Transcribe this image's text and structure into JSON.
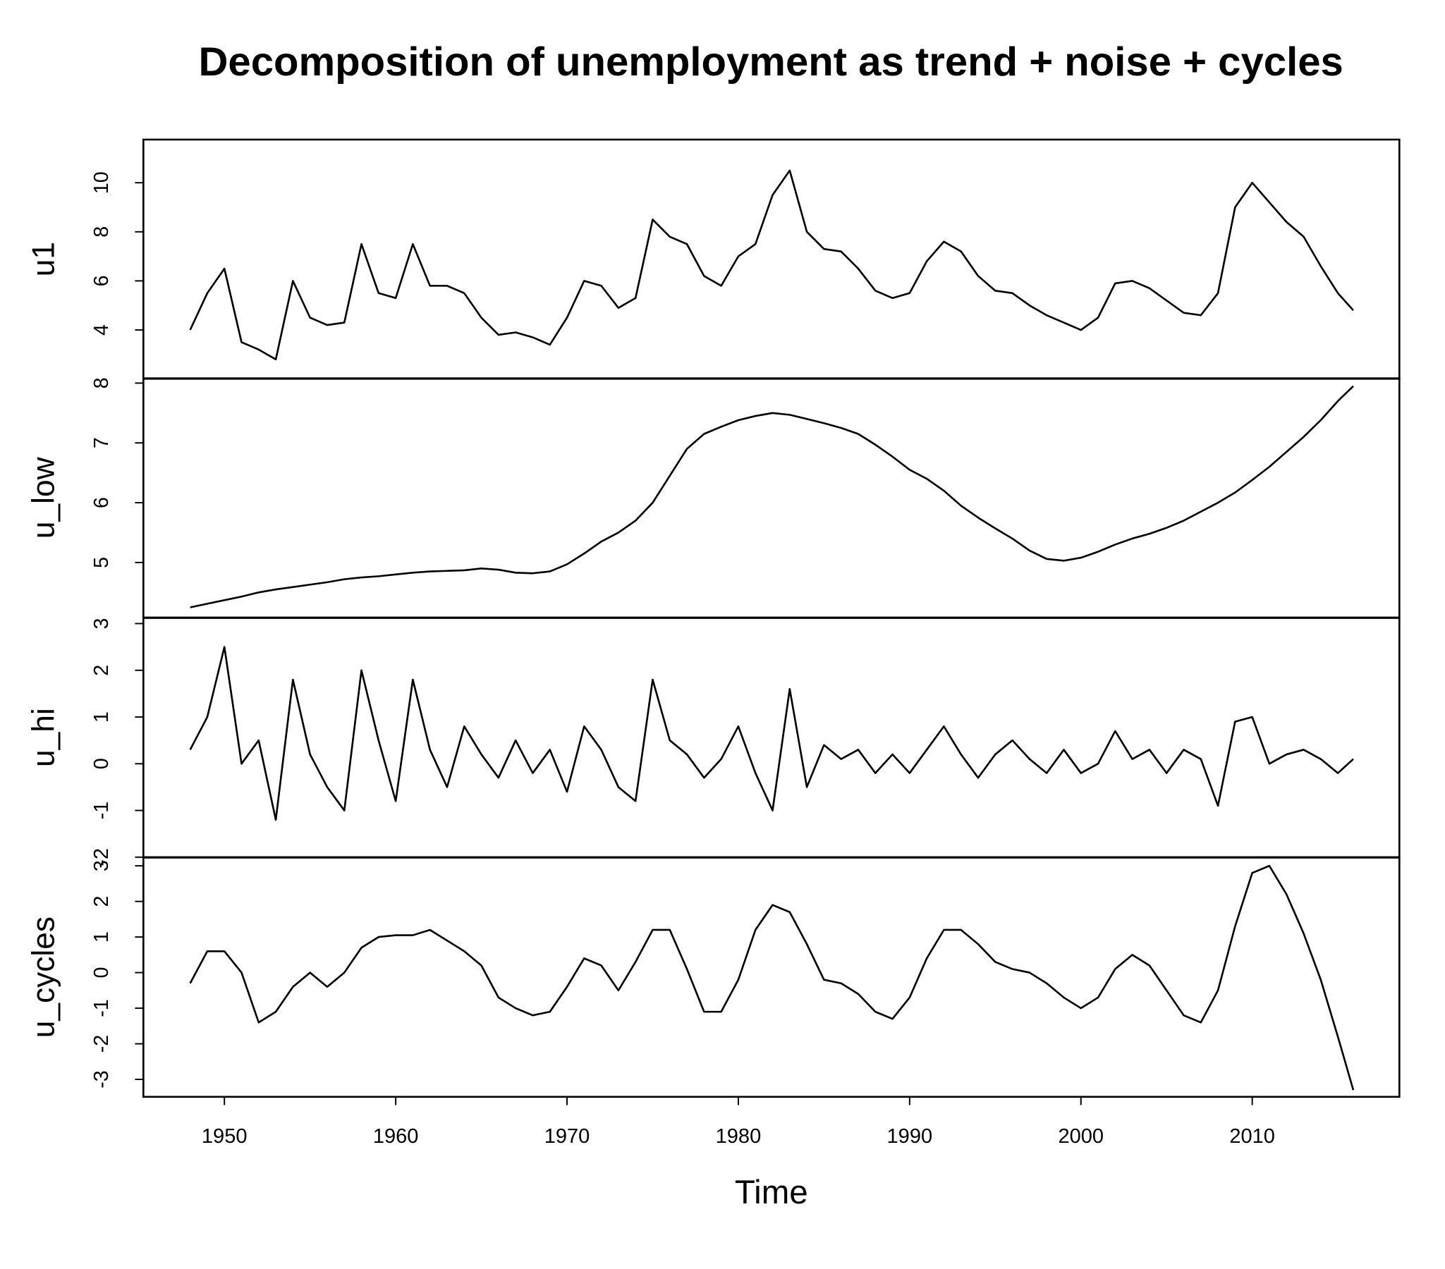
{
  "chart_data": [
    {
      "type": "line",
      "title": "Decomposition of unemployment as trend + noise + cycles",
      "ylabel": "u1",
      "color": "#000000",
      "x": [
        1948,
        1949,
        1950,
        1951,
        1952,
        1953,
        1954,
        1955,
        1956,
        1957,
        1958,
        1959,
        1960,
        1961,
        1962,
        1963,
        1964,
        1965,
        1966,
        1967,
        1968,
        1969,
        1970,
        1971,
        1972,
        1973,
        1974,
        1975,
        1976,
        1977,
        1978,
        1979,
        1980,
        1981,
        1982,
        1983,
        1984,
        1985,
        1986,
        1987,
        1988,
        1989,
        1990,
        1991,
        1992,
        1993,
        1994,
        1995,
        1996,
        1997,
        1998,
        1999,
        2000,
        2001,
        2002,
        2003,
        2004,
        2005,
        2006,
        2007,
        2008,
        2009,
        2010,
        2011,
        2012,
        2013,
        2014,
        2015,
        2015.9
      ],
      "values": [
        4.0,
        5.5,
        6.5,
        3.5,
        3.2,
        2.8,
        6.0,
        4.5,
        4.2,
        4.3,
        7.5,
        5.5,
        5.3,
        7.5,
        5.8,
        5.8,
        5.5,
        4.5,
        3.8,
        3.9,
        3.7,
        3.4,
        4.5,
        6.0,
        5.8,
        4.9,
        5.3,
        8.5,
        7.8,
        7.5,
        6.2,
        5.8,
        7.0,
        7.5,
        9.5,
        10.5,
        8.0,
        7.3,
        7.2,
        6.5,
        5.6,
        5.3,
        5.5,
        6.8,
        7.6,
        7.2,
        6.2,
        5.6,
        5.5,
        5.0,
        4.6,
        4.3,
        4.0,
        4.5,
        5.9,
        6.0,
        5.7,
        5.2,
        4.7,
        4.6,
        5.5,
        9.0,
        10.0,
        9.2,
        8.4,
        7.8,
        6.6,
        5.5,
        4.8
      ],
      "xlim": [
        1945.27,
        2018.59
      ],
      "ylim": [
        2.01,
        11.76
      ],
      "yticks": [
        4,
        6,
        8,
        10
      ]
    },
    {
      "type": "line",
      "ylabel": "u_low",
      "color": "#000000",
      "x": [
        1948,
        1949,
        1950,
        1951,
        1952,
        1953,
        1954,
        1955,
        1956,
        1957,
        1958,
        1959,
        1960,
        1961,
        1962,
        1963,
        1964,
        1965,
        1966,
        1967,
        1968,
        1969,
        1970,
        1971,
        1972,
        1973,
        1974,
        1975,
        1976,
        1977,
        1978,
        1979,
        1980,
        1981,
        1982,
        1983,
        1984,
        1985,
        1986,
        1987,
        1988,
        1989,
        1990,
        1991,
        1992,
        1993,
        1994,
        1995,
        1996,
        1997,
        1998,
        1999,
        2000,
        2001,
        2002,
        2003,
        2004,
        2005,
        2006,
        2007,
        2008,
        2009,
        2010,
        2011,
        2012,
        2013,
        2014,
        2015,
        2015.9
      ],
      "values": [
        4.25,
        4.31,
        4.37,
        4.43,
        4.5,
        4.55,
        4.59,
        4.63,
        4.67,
        4.72,
        4.75,
        4.77,
        4.8,
        4.83,
        4.85,
        4.86,
        4.87,
        4.9,
        4.88,
        4.83,
        4.82,
        4.85,
        4.97,
        5.15,
        5.35,
        5.5,
        5.7,
        6.0,
        6.45,
        6.9,
        7.15,
        7.27,
        7.38,
        7.45,
        7.5,
        7.47,
        7.4,
        7.33,
        7.25,
        7.15,
        6.97,
        6.77,
        6.55,
        6.4,
        6.2,
        5.95,
        5.75,
        5.57,
        5.4,
        5.2,
        5.06,
        5.03,
        5.08,
        5.18,
        5.3,
        5.4,
        5.48,
        5.58,
        5.7,
        5.85,
        6.0,
        6.17,
        6.38,
        6.6,
        6.85,
        7.1,
        7.38,
        7.7,
        7.95
      ],
      "xlim": [
        1945.27,
        2018.59
      ],
      "ylim": [
        4.08,
        8.08
      ],
      "yticks": [
        5,
        6,
        7,
        8
      ]
    },
    {
      "type": "line",
      "ylabel": "u_hi",
      "color": "#000000",
      "x": [
        1948,
        1949,
        1950,
        1951,
        1952,
        1953,
        1954,
        1955,
        1956,
        1957,
        1958,
        1959,
        1960,
        1961,
        1962,
        1963,
        1964,
        1965,
        1966,
        1967,
        1968,
        1969,
        1970,
        1971,
        1972,
        1973,
        1974,
        1975,
        1976,
        1977,
        1978,
        1979,
        1980,
        1981,
        1982,
        1983,
        1984,
        1985,
        1986,
        1987,
        1988,
        1989,
        1990,
        1991,
        1992,
        1993,
        1994,
        1995,
        1996,
        1997,
        1998,
        1999,
        2000,
        2001,
        2002,
        2003,
        2004,
        2005,
        2006,
        2007,
        2008,
        2009,
        2010,
        2011,
        2012,
        2013,
        2014,
        2015,
        2015.9
      ],
      "values": [
        0.3,
        1.0,
        2.5,
        0.0,
        0.5,
        -1.2,
        1.8,
        0.2,
        -0.5,
        -1.0,
        2.0,
        0.5,
        -0.8,
        1.8,
        0.3,
        -0.5,
        0.8,
        0.2,
        -0.3,
        0.5,
        -0.2,
        0.3,
        -0.6,
        0.8,
        0.3,
        -0.5,
        -0.8,
        1.8,
        0.5,
        0.2,
        -0.3,
        0.1,
        0.8,
        -0.2,
        -1.0,
        1.6,
        -0.5,
        0.4,
        0.1,
        0.3,
        -0.2,
        0.2,
        -0.2,
        0.3,
        0.8,
        0.2,
        -0.3,
        0.2,
        0.5,
        0.1,
        -0.2,
        0.3,
        -0.2,
        0.0,
        0.7,
        0.1,
        0.3,
        -0.2,
        0.3,
        0.1,
        -0.9,
        0.9,
        1.0,
        0.0,
        0.2,
        0.3,
        0.1,
        -0.2,
        0.1
      ],
      "xlim": [
        1945.27,
        2018.59
      ],
      "ylim": [
        -2.0,
        3.12
      ],
      "yticks": [
        -2,
        -1,
        0,
        1,
        2,
        3
      ]
    },
    {
      "type": "line",
      "ylabel": "u_cycles",
      "xlabel": "Time",
      "color": "#000000",
      "x": [
        1948,
        1949,
        1950,
        1951,
        1952,
        1953,
        1954,
        1955,
        1956,
        1957,
        1958,
        1959,
        1960,
        1961,
        1962,
        1963,
        1964,
        1965,
        1966,
        1967,
        1968,
        1969,
        1970,
        1971,
        1972,
        1973,
        1974,
        1975,
        1976,
        1977,
        1978,
        1979,
        1980,
        1981,
        1982,
        1983,
        1984,
        1985,
        1986,
        1987,
        1988,
        1989,
        1990,
        1991,
        1992,
        1993,
        1994,
        1995,
        1996,
        1997,
        1998,
        1999,
        2000,
        2001,
        2002,
        2003,
        2004,
        2005,
        2006,
        2007,
        2008,
        2009,
        2010,
        2011,
        2012,
        2013,
        2014,
        2015,
        2015.9
      ],
      "values": [
        -0.3,
        0.6,
        0.6,
        0.0,
        -1.4,
        -1.1,
        -0.4,
        0.0,
        -0.4,
        0.0,
        0.7,
        1.0,
        1.05,
        1.05,
        1.2,
        0.9,
        0.6,
        0.2,
        -0.7,
        -1.0,
        -1.2,
        -1.1,
        -0.4,
        0.4,
        0.2,
        -0.5,
        0.3,
        1.2,
        1.2,
        0.1,
        -1.1,
        -1.1,
        -0.2,
        1.2,
        1.9,
        1.7,
        0.8,
        -0.2,
        -0.3,
        -0.6,
        -1.1,
        -1.3,
        -0.7,
        0.4,
        1.2,
        1.2,
        0.8,
        0.3,
        0.1,
        0.0,
        -0.3,
        -0.7,
        -1.0,
        -0.7,
        0.1,
        0.5,
        0.2,
        -0.5,
        -1.2,
        -1.4,
        -0.5,
        1.3,
        2.8,
        3.0,
        2.2,
        1.1,
        -0.2,
        -1.8,
        -3.3
      ],
      "xlim": [
        1945.27,
        2018.59
      ],
      "ylim": [
        -3.49,
        3.23
      ],
      "yticks": [
        -3,
        -2,
        -1,
        0,
        1,
        2,
        3
      ],
      "xticks": [
        1950,
        1960,
        1970,
        1980,
        1990,
        2000,
        2010
      ]
    }
  ]
}
